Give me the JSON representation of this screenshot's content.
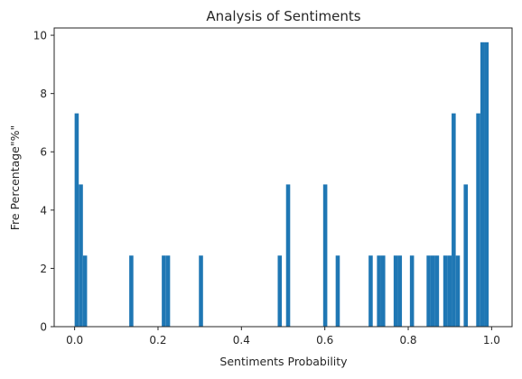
{
  "chart_data": {
    "type": "bar",
    "title": "Analysis of Sentiments",
    "xlabel": "Sentiments Probability",
    "ylabel": "Fre Percentage\"%\"",
    "xlim": [
      -0.049,
      1.049
    ],
    "ylim": [
      0,
      10.25
    ],
    "grid": false,
    "bar_color": "#1f77b4",
    "bin_width": 0.0099,
    "x_ticks": [
      0.0,
      0.2,
      0.4,
      0.6,
      0.8,
      1.0
    ],
    "x_tick_labels": [
      "0.0",
      "0.2",
      "0.4",
      "0.6",
      "0.8",
      "1.0"
    ],
    "y_ticks": [
      0,
      2,
      4,
      6,
      8,
      10
    ],
    "y_tick_labels": [
      "0",
      "2",
      "4",
      "6",
      "8",
      "10"
    ],
    "bars": [
      {
        "x": 0.0,
        "value": 7.32
      },
      {
        "x": 0.01,
        "value": 4.88
      },
      {
        "x": 0.02,
        "value": 2.44
      },
      {
        "x": 0.131,
        "value": 2.44
      },
      {
        "x": 0.209,
        "value": 2.44
      },
      {
        "x": 0.219,
        "value": 2.44
      },
      {
        "x": 0.298,
        "value": 2.44
      },
      {
        "x": 0.487,
        "value": 2.44
      },
      {
        "x": 0.507,
        "value": 4.88
      },
      {
        "x": 0.596,
        "value": 4.88
      },
      {
        "x": 0.626,
        "value": 2.44
      },
      {
        "x": 0.705,
        "value": 2.44
      },
      {
        "x": 0.725,
        "value": 2.44
      },
      {
        "x": 0.735,
        "value": 2.44
      },
      {
        "x": 0.765,
        "value": 2.44
      },
      {
        "x": 0.775,
        "value": 2.44
      },
      {
        "x": 0.804,
        "value": 2.44
      },
      {
        "x": 0.844,
        "value": 2.44
      },
      {
        "x": 0.854,
        "value": 2.44
      },
      {
        "x": 0.864,
        "value": 2.44
      },
      {
        "x": 0.884,
        "value": 2.44
      },
      {
        "x": 0.894,
        "value": 2.44
      },
      {
        "x": 0.904,
        "value": 7.32
      },
      {
        "x": 0.914,
        "value": 2.44
      },
      {
        "x": 0.933,
        "value": 4.88
      },
      {
        "x": 0.963,
        "value": 7.32
      },
      {
        "x": 0.973,
        "value": 9.76
      },
      {
        "x": 0.983,
        "value": 9.76
      }
    ]
  }
}
